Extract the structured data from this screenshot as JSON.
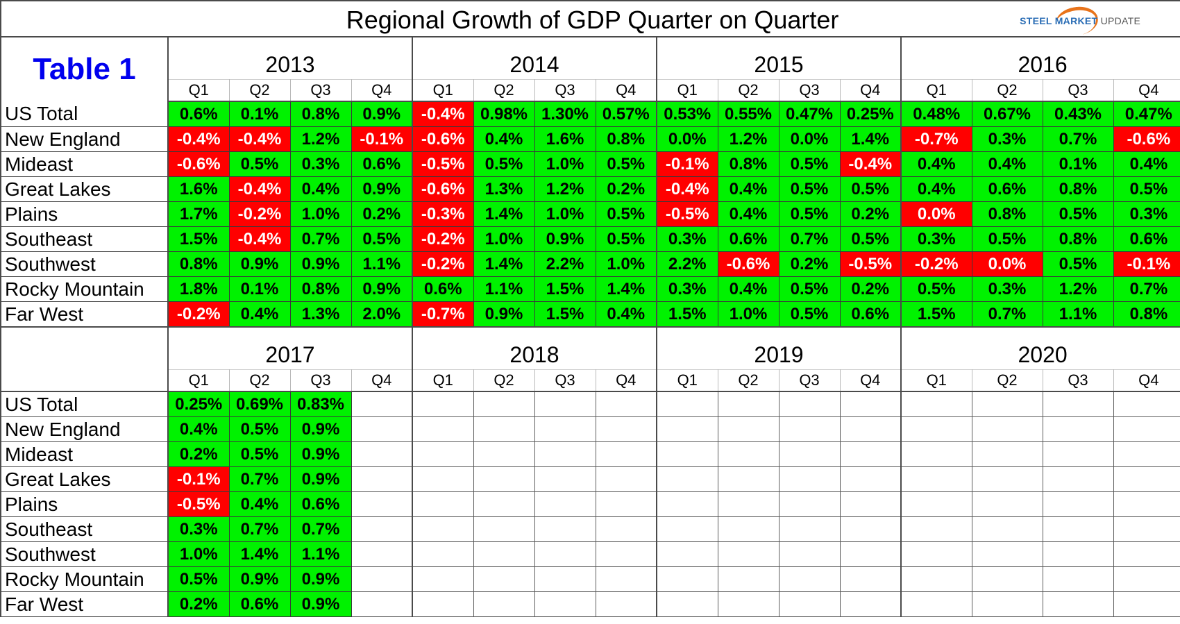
{
  "title": "Regional Growth of GDP Quarter on Quarter",
  "table_label": "Table 1",
  "logo": {
    "name": "steel-market-update-logo",
    "text_bold": "STEEL MARKET",
    "text_light": "UPDATE"
  },
  "colors": {
    "positive": "#00f200",
    "negative": "#ff0000",
    "table_label": "#0000ee",
    "logo_blue": "#2a6db5",
    "logo_orange": "#e8731a"
  },
  "quarters": [
    "Q1",
    "Q2",
    "Q3",
    "Q4"
  ],
  "regions": [
    "US Total",
    "New England",
    "Mideast",
    "Great Lakes",
    "Plains",
    "Southeast",
    "Southwest",
    "Rocky Mountain",
    "Far West"
  ],
  "blocks": [
    {
      "years": [
        "2013",
        "2014",
        "2015",
        "2016"
      ],
      "values": [
        [
          "0.6%",
          "0.1%",
          "0.8%",
          "0.9%",
          "-0.4%",
          "0.98%",
          "1.30%",
          "0.57%",
          "0.53%",
          "0.55%",
          "0.47%",
          "0.25%",
          "0.48%",
          "0.67%",
          "0.43%",
          "0.47%"
        ],
        [
          "-0.4%",
          "-0.4%",
          "1.2%",
          "-0.1%",
          "-0.6%",
          "0.4%",
          "1.6%",
          "0.8%",
          "0.0%",
          "1.2%",
          "0.0%",
          "1.4%",
          "-0.7%",
          "0.3%",
          "0.7%",
          "-0.6%"
        ],
        [
          "-0.6%",
          "0.5%",
          "0.3%",
          "0.6%",
          "-0.5%",
          "0.5%",
          "1.0%",
          "0.5%",
          "-0.1%",
          "0.8%",
          "0.5%",
          "-0.4%",
          "0.4%",
          "0.4%",
          "0.1%",
          "0.4%"
        ],
        [
          "1.6%",
          "-0.4%",
          "0.4%",
          "0.9%",
          "-0.6%",
          "1.3%",
          "1.2%",
          "0.2%",
          "-0.4%",
          "0.4%",
          "0.5%",
          "0.5%",
          "0.4%",
          "0.6%",
          "0.8%",
          "0.5%"
        ],
        [
          "1.7%",
          "-0.2%",
          "1.0%",
          "0.2%",
          "-0.3%",
          "1.4%",
          "1.0%",
          "0.5%",
          "-0.5%",
          "0.4%",
          "0.5%",
          "0.2%",
          "0.0%",
          "0.8%",
          "0.5%",
          "0.3%"
        ],
        [
          "1.5%",
          "-0.4%",
          "0.7%",
          "0.5%",
          "-0.2%",
          "1.0%",
          "0.9%",
          "0.5%",
          "0.3%",
          "0.6%",
          "0.7%",
          "0.5%",
          "0.3%",
          "0.5%",
          "0.8%",
          "0.6%"
        ],
        [
          "0.8%",
          "0.9%",
          "0.9%",
          "1.1%",
          "-0.2%",
          "1.4%",
          "2.2%",
          "1.0%",
          "2.2%",
          "-0.6%",
          "0.2%",
          "-0.5%",
          "-0.2%",
          "0.0%",
          "0.5%",
          "-0.1%"
        ],
        [
          "1.8%",
          "0.1%",
          "0.8%",
          "0.9%",
          "0.6%",
          "1.1%",
          "1.5%",
          "1.4%",
          "0.3%",
          "0.4%",
          "0.5%",
          "0.2%",
          "0.5%",
          "0.3%",
          "1.2%",
          "0.7%"
        ],
        [
          "-0.2%",
          "0.4%",
          "1.3%",
          "2.0%",
          "-0.7%",
          "0.9%",
          "1.5%",
          "0.4%",
          "1.5%",
          "1.0%",
          "0.5%",
          "0.6%",
          "1.5%",
          "0.7%",
          "1.1%",
          "0.8%"
        ]
      ],
      "negative_flags": [
        [
          0,
          0,
          0,
          0,
          1,
          0,
          0,
          0,
          0,
          0,
          0,
          0,
          0,
          0,
          0,
          0
        ],
        [
          1,
          1,
          0,
          1,
          1,
          0,
          0,
          0,
          0,
          0,
          0,
          0,
          1,
          0,
          0,
          1
        ],
        [
          1,
          0,
          0,
          0,
          1,
          0,
          0,
          0,
          1,
          0,
          0,
          1,
          0,
          0,
          0,
          0
        ],
        [
          0,
          1,
          0,
          0,
          1,
          0,
          0,
          0,
          1,
          0,
          0,
          0,
          0,
          0,
          0,
          0
        ],
        [
          0,
          1,
          0,
          0,
          1,
          0,
          0,
          0,
          1,
          0,
          0,
          0,
          1,
          0,
          0,
          0
        ],
        [
          0,
          1,
          0,
          0,
          1,
          0,
          0,
          0,
          0,
          0,
          0,
          0,
          0,
          0,
          0,
          0
        ],
        [
          0,
          0,
          0,
          0,
          1,
          0,
          0,
          0,
          0,
          1,
          0,
          1,
          1,
          1,
          0,
          1
        ],
        [
          0,
          0,
          0,
          0,
          0,
          0,
          0,
          0,
          0,
          0,
          0,
          0,
          0,
          0,
          0,
          0
        ],
        [
          1,
          0,
          0,
          0,
          1,
          0,
          0,
          0,
          0,
          0,
          0,
          0,
          0,
          0,
          0,
          0
        ]
      ]
    },
    {
      "years": [
        "2017",
        "2018",
        "2019",
        "2020"
      ],
      "values": [
        [
          "0.25%",
          "0.69%",
          "0.83%",
          "",
          "",
          "",
          "",
          "",
          "",
          "",
          "",
          "",
          "",
          "",
          "",
          ""
        ],
        [
          "0.4%",
          "0.5%",
          "0.9%",
          "",
          "",
          "",
          "",
          "",
          "",
          "",
          "",
          "",
          "",
          "",
          "",
          ""
        ],
        [
          "0.2%",
          "0.5%",
          "0.9%",
          "",
          "",
          "",
          "",
          "",
          "",
          "",
          "",
          "",
          "",
          "",
          "",
          ""
        ],
        [
          "-0.1%",
          "0.7%",
          "0.9%",
          "",
          "",
          "",
          "",
          "",
          "",
          "",
          "",
          "",
          "",
          "",
          "",
          ""
        ],
        [
          "-0.5%",
          "0.4%",
          "0.6%",
          "",
          "",
          "",
          "",
          "",
          "",
          "",
          "",
          "",
          "",
          "",
          "",
          ""
        ],
        [
          "0.3%",
          "0.7%",
          "0.7%",
          "",
          "",
          "",
          "",
          "",
          "",
          "",
          "",
          "",
          "",
          "",
          "",
          ""
        ],
        [
          "1.0%",
          "1.4%",
          "1.1%",
          "",
          "",
          "",
          "",
          "",
          "",
          "",
          "",
          "",
          "",
          "",
          "",
          ""
        ],
        [
          "0.5%",
          "0.9%",
          "0.9%",
          "",
          "",
          "",
          "",
          "",
          "",
          "",
          "",
          "",
          "",
          "",
          "",
          ""
        ],
        [
          "0.2%",
          "0.6%",
          "0.9%",
          "",
          "",
          "",
          "",
          "",
          "",
          "",
          "",
          "",
          "",
          "",
          "",
          ""
        ]
      ],
      "negative_flags": [
        [
          0,
          0,
          0,
          0,
          0,
          0,
          0,
          0,
          0,
          0,
          0,
          0,
          0,
          0,
          0,
          0
        ],
        [
          0,
          0,
          0,
          0,
          0,
          0,
          0,
          0,
          0,
          0,
          0,
          0,
          0,
          0,
          0,
          0
        ],
        [
          0,
          0,
          0,
          0,
          0,
          0,
          0,
          0,
          0,
          0,
          0,
          0,
          0,
          0,
          0,
          0
        ],
        [
          1,
          0,
          0,
          0,
          0,
          0,
          0,
          0,
          0,
          0,
          0,
          0,
          0,
          0,
          0,
          0
        ],
        [
          1,
          0,
          0,
          0,
          0,
          0,
          0,
          0,
          0,
          0,
          0,
          0,
          0,
          0,
          0,
          0
        ],
        [
          0,
          0,
          0,
          0,
          0,
          0,
          0,
          0,
          0,
          0,
          0,
          0,
          0,
          0,
          0,
          0
        ],
        [
          0,
          0,
          0,
          0,
          0,
          0,
          0,
          0,
          0,
          0,
          0,
          0,
          0,
          0,
          0,
          0
        ],
        [
          0,
          0,
          0,
          0,
          0,
          0,
          0,
          0,
          0,
          0,
          0,
          0,
          0,
          0,
          0,
          0
        ],
        [
          0,
          0,
          0,
          0,
          0,
          0,
          0,
          0,
          0,
          0,
          0,
          0,
          0,
          0,
          0,
          0
        ]
      ]
    }
  ]
}
